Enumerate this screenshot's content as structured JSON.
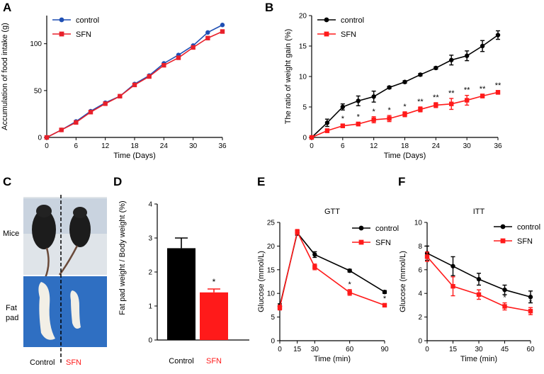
{
  "colors": {
    "control": "#000000",
    "sfn": "#ff1a1a",
    "sfn_panelA": "#e8202a",
    "control_panelA": "#1f4fb4",
    "bar_control": "#000000",
    "bar_sfn": "#ff1a1a"
  },
  "panels": {
    "A": {
      "label": "A"
    },
    "B": {
      "label": "B"
    },
    "C": {
      "label": "C"
    },
    "D": {
      "label": "D"
    },
    "E": {
      "label": "E"
    },
    "F": {
      "label": "F"
    }
  },
  "photo": {
    "row_labels": [
      "Mice",
      "Fat\npad"
    ],
    "row_label_mice": "Mice",
    "row_label_fat_1": "Fat",
    "row_label_fat_2": "pad",
    "col_control": "Control",
    "col_sfn": "SFN"
  },
  "chart_data": [
    {
      "id": "A",
      "type": "line",
      "title": "",
      "xlabel": "Time (Days)",
      "ylabel": "Accumulation of food intake (g)",
      "xlim": [
        0,
        36
      ],
      "ylim": [
        0,
        130
      ],
      "xticks": [
        0,
        6,
        12,
        18,
        24,
        30,
        36
      ],
      "yticks": [
        0,
        50,
        100
      ],
      "x": [
        0,
        3,
        6,
        9,
        12,
        15,
        18,
        21,
        24,
        27,
        30,
        33,
        36
      ],
      "series": [
        {
          "name": "control",
          "values": [
            0,
            8,
            17,
            28,
            37,
            44,
            57,
            66,
            79,
            88,
            98,
            112,
            120
          ]
        },
        {
          "name": "SFN",
          "values": [
            0,
            8,
            16,
            27,
            36,
            44,
            56,
            65,
            77,
            85,
            96,
            106,
            113
          ]
        }
      ],
      "legend": [
        "control",
        "SFN"
      ]
    },
    {
      "id": "B",
      "type": "line",
      "title": "",
      "xlabel": "Time (Days)",
      "ylabel": "The ratio of weight gain (%)",
      "xlim": [
        0,
        36
      ],
      "ylim": [
        0,
        20
      ],
      "xticks": [
        0,
        6,
        12,
        18,
        24,
        30,
        36
      ],
      "yticks": [
        0,
        5,
        10,
        15,
        20
      ],
      "x": [
        0,
        3,
        6,
        9,
        12,
        15,
        18,
        21,
        24,
        27,
        30,
        33,
        36
      ],
      "series": [
        {
          "name": "control",
          "values": [
            0,
            2.4,
            5.0,
            6.0,
            6.7,
            8.2,
            9.1,
            10.3,
            11.4,
            12.7,
            13.4,
            15.0,
            16.8
          ],
          "errors": [
            0,
            0.6,
            0.5,
            0.8,
            0.9,
            0.2,
            0.2,
            0.2,
            0.2,
            0.8,
            0.8,
            0.9,
            0.7
          ]
        },
        {
          "name": "SFN",
          "values": [
            0,
            1.1,
            1.9,
            2.2,
            2.9,
            3.1,
            3.8,
            4.6,
            5.3,
            5.5,
            6.1,
            6.8,
            7.4
          ],
          "errors": [
            0,
            0.3,
            0.3,
            0.3,
            0.5,
            0.5,
            0.4,
            0.4,
            0.4,
            0.9,
            0.8,
            0.3,
            0.3
          ]
        }
      ],
      "annotations": [
        "*",
        "*",
        "*",
        "*",
        "*",
        "**",
        "**",
        "**",
        "**",
        "**",
        "**"
      ],
      "legend": [
        "control",
        "SFN"
      ]
    },
    {
      "id": "D",
      "type": "bar",
      "title": "",
      "xlabel": "",
      "ylabel": "Fat pad weight / Body weight (%)",
      "ylim": [
        0,
        4
      ],
      "yticks": [
        0,
        1,
        2,
        3,
        4
      ],
      "categories": [
        "Control",
        "SFN"
      ],
      "values": [
        2.7,
        1.4
      ],
      "errors": [
        0.3,
        0.1
      ],
      "annotations": [
        "",
        "*"
      ]
    },
    {
      "id": "E",
      "type": "line",
      "title": "GTT",
      "xlabel": "Time (min)",
      "ylabel": "Glucose (mmol/L)",
      "xlim": [
        0,
        90
      ],
      "ylim": [
        0,
        25
      ],
      "xticks": [
        0,
        15,
        30,
        60,
        90
      ],
      "yticks": [
        0,
        5,
        10,
        15,
        20,
        25
      ],
      "x": [
        0,
        15,
        30,
        60,
        90
      ],
      "series": [
        {
          "name": "control",
          "values": [
            7.3,
            22.8,
            18.2,
            14.8,
            10.3
          ],
          "errors": [
            0.5,
            0.5,
            0.6,
            0.3,
            0.3
          ]
        },
        {
          "name": "SFN",
          "values": [
            7.0,
            23.0,
            15.6,
            10.2,
            7.5
          ],
          "errors": [
            0.5,
            0.5,
            0.6,
            0.6,
            0.3
          ]
        }
      ],
      "annotations": [
        "",
        "",
        "",
        "*",
        "*"
      ],
      "legend": [
        "control",
        "SFN"
      ]
    },
    {
      "id": "F",
      "type": "line",
      "title": "ITT",
      "xlabel": "Time (min)",
      "ylabel": "Glucose (mmol/L)",
      "xlim": [
        0,
        60
      ],
      "ylim": [
        0,
        10
      ],
      "xticks": [
        0,
        15,
        30,
        45,
        60
      ],
      "yticks": [
        0,
        2,
        4,
        6,
        8,
        10
      ],
      "x": [
        0,
        15,
        30,
        45,
        60
      ],
      "series": [
        {
          "name": "control",
          "values": [
            7.4,
            6.3,
            5.2,
            4.3,
            3.7
          ],
          "errors": [
            0.6,
            0.8,
            0.5,
            0.4,
            0.5
          ]
        },
        {
          "name": "SFN",
          "values": [
            7.1,
            4.6,
            3.9,
            2.9,
            2.5
          ],
          "errors": [
            0.4,
            0.8,
            0.4,
            0.3,
            0.3
          ]
        }
      ],
      "annotations": [
        "",
        "",
        "",
        "*",
        "*"
      ],
      "legend": [
        "control",
        "SFN"
      ]
    }
  ]
}
